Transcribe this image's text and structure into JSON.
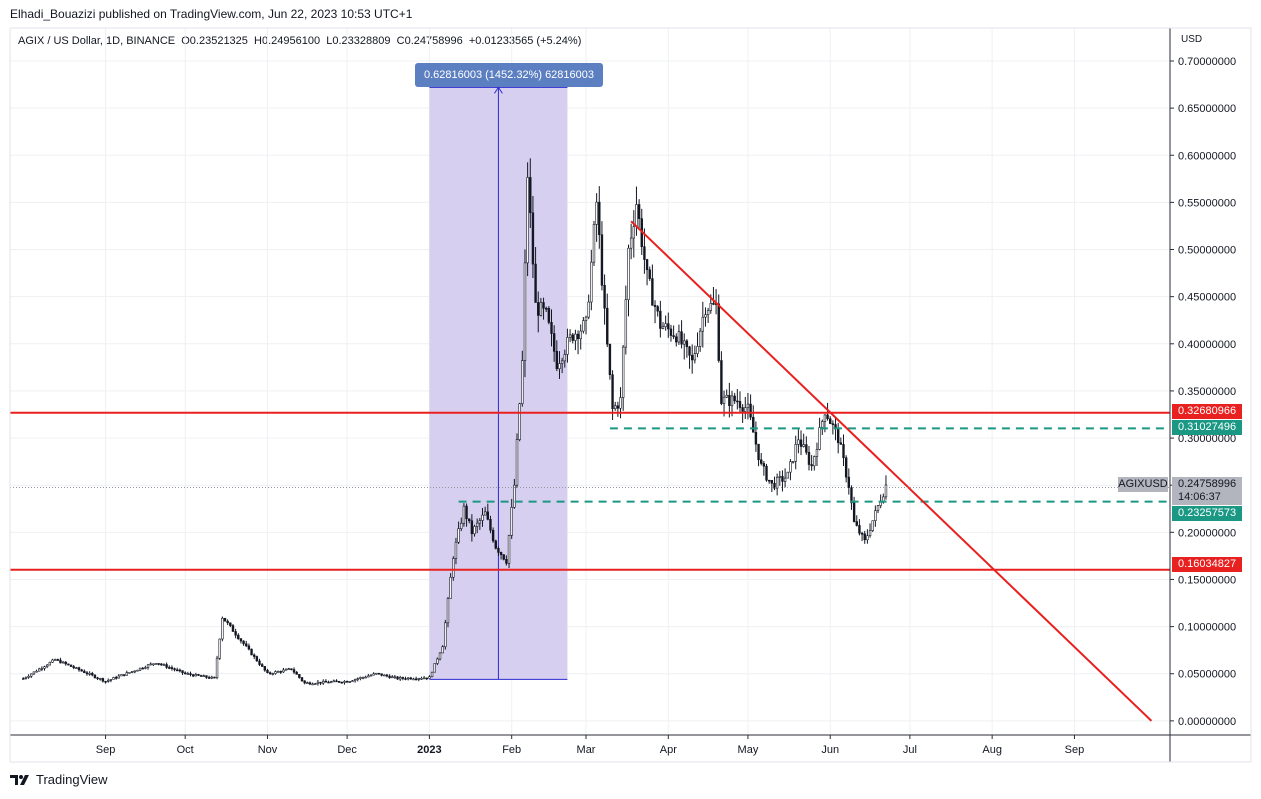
{
  "header": {
    "publisher": "Elhadi_Bouazizi published on TradingView.com, Jun 22, 2023 10:53 UTC+1"
  },
  "legend": {
    "symbol": "AGIX / US Dollar, 1D, BINANCE",
    "open_label": "O",
    "open": "0.23521325",
    "high_label": "H",
    "high": "0.24956100",
    "low_label": "L",
    "low": "0.23328809",
    "close_label": "C",
    "close": "0.24758996",
    "change": "+0.01233565 (+5.24%)"
  },
  "axis_currency": "USD",
  "measure": {
    "label": "0.62816003 (1452.32%) 62816003",
    "color": "#7b61d6"
  },
  "price_labels": {
    "resistance": "0.32680966",
    "upper_dashed": "0.31027496",
    "symbol_badge": "AGIXUSD",
    "current_price": "0.24758996",
    "countdown": "14:06:37",
    "lower_dashed": "0.23257573",
    "support": "0.16034827"
  },
  "colors": {
    "red_line": "#e8201f",
    "dashed_green": "#1a9884",
    "measure_fill": "#d4ccee",
    "measure_line": "#2a2ad0",
    "label_bg_blue": "#5b7fc0",
    "label_gray": "#b2b5be",
    "grid": "#eef0f3"
  },
  "footer": {
    "brand": "TradingView"
  },
  "chart_data": {
    "type": "line",
    "title": "AGIX / US Dollar, 1D, BINANCE",
    "ylabel": "USD",
    "ylim": [
      -0.015,
      0.735
    ],
    "y_ticks": [
      "0.00000000",
      "0.05000000",
      "0.10000000",
      "0.15000000",
      "0.20000000",
      "0.25000000",
      "0.30000000",
      "0.35000000",
      "0.40000000",
      "0.45000000",
      "0.50000000",
      "0.55000000",
      "0.60000000",
      "0.65000000",
      "0.70000000"
    ],
    "x_ticks": [
      "Sep",
      "Oct",
      "Nov",
      "Dec",
      "2023",
      "Feb",
      "Mar",
      "Apr",
      "May",
      "Jun",
      "Jul",
      "Aug",
      "Sep"
    ],
    "series": [
      {
        "x": [
          "2022-08-01",
          "2022-08-13",
          "2022-09-01",
          "2022-09-20",
          "2022-10-01",
          "2022-10-12",
          "2022-10-15",
          "2022-11-01",
          "2022-11-10",
          "2022-11-15",
          "2022-12-01",
          "2022-12-12",
          "2022-12-20",
          "2023-01-01",
          "2023-01-06",
          "2023-01-10",
          "2023-01-14",
          "2023-01-17",
          "2023-01-22",
          "2023-01-26",
          "2023-01-30",
          "2023-02-02",
          "2023-02-05",
          "2023-02-07",
          "2023-02-10",
          "2023-02-14",
          "2023-02-18",
          "2023-02-24",
          "2023-03-01",
          "2023-03-05",
          "2023-03-08",
          "2023-03-11",
          "2023-03-14",
          "2023-03-17",
          "2023-03-20",
          "2023-03-24",
          "2023-03-29",
          "2023-04-04",
          "2023-04-10",
          "2023-04-15",
          "2023-04-19",
          "2023-04-21",
          "2023-04-27",
          "2023-05-01",
          "2023-05-06",
          "2023-05-10",
          "2023-05-16",
          "2023-05-20",
          "2023-05-25",
          "2023-05-30",
          "2023-06-04",
          "2023-06-08",
          "2023-06-10",
          "2023-06-14",
          "2023-06-18",
          "2023-06-22"
        ],
        "values": [
          0.045,
          0.065,
          0.042,
          0.062,
          0.05,
          0.045,
          0.11,
          0.05,
          0.055,
          0.04,
          0.042,
          0.05,
          0.045,
          0.046,
          0.08,
          0.175,
          0.225,
          0.2,
          0.22,
          0.185,
          0.17,
          0.25,
          0.38,
          0.58,
          0.44,
          0.43,
          0.38,
          0.41,
          0.42,
          0.55,
          0.43,
          0.33,
          0.34,
          0.5,
          0.55,
          0.47,
          0.42,
          0.41,
          0.38,
          0.44,
          0.44,
          0.34,
          0.34,
          0.33,
          0.27,
          0.25,
          0.26,
          0.3,
          0.27,
          0.33,
          0.3,
          0.25,
          0.21,
          0.19,
          0.22,
          0.25
        ]
      }
    ],
    "annotations": {
      "horizontal_lines": [
        0.32680966,
        0.16034827
      ],
      "dashed_lines": [
        0.31027496,
        0.23257573
      ],
      "trendline": {
        "from": [
          "2023-03-18",
          0.53
        ],
        "to": [
          "2023-09-30",
          0.0
        ]
      },
      "measure_range": {
        "from": [
          "2023-01-01",
          0.044
        ],
        "to": [
          "2023-02-22",
          0.672
        ],
        "change": 0.62816003,
        "change_pct": 1452.32
      }
    }
  }
}
